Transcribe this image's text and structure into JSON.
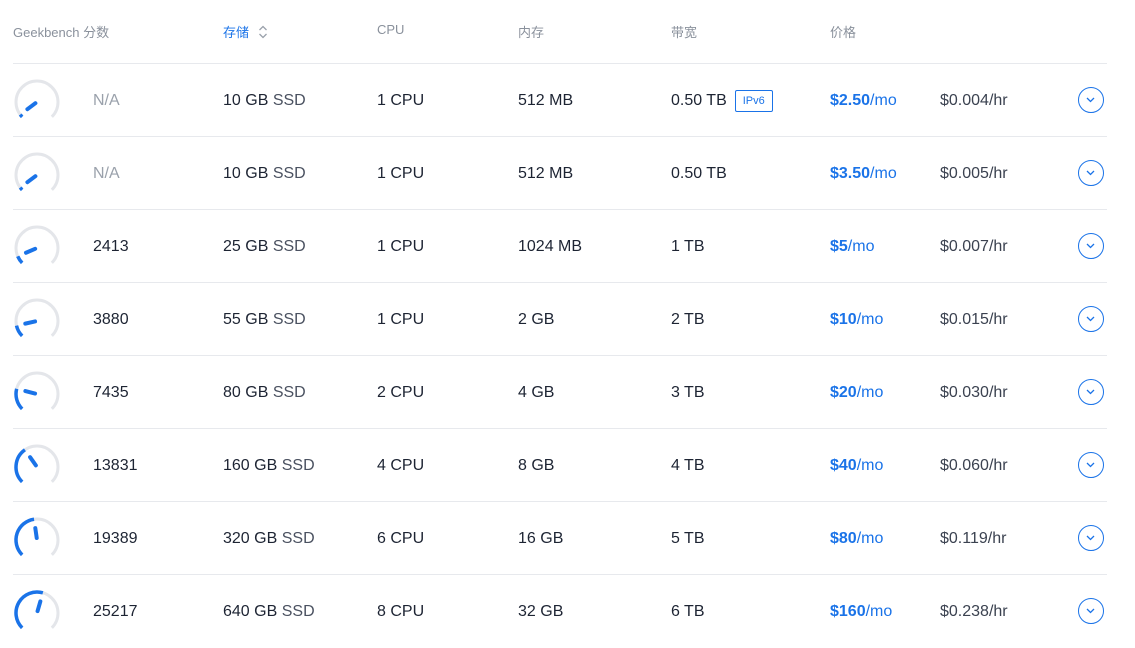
{
  "header": {
    "geekbench": "Geekbench 分数",
    "storage": "存储",
    "cpu": "CPU",
    "memory": "内存",
    "bandwidth": "带宽",
    "price": "价格",
    "sort_icon": "sort-up-down-icon"
  },
  "accent_color": "#1a73e8",
  "plans": [
    {
      "score": "N/A",
      "gauge_level": 0.03,
      "storage_size": "10 GB",
      "storage_type": "SSD",
      "cpu": "1 CPU",
      "memory": "512 MB",
      "bandwidth": "0.50 TB",
      "badge": "IPv6",
      "price_amount": "$2.50",
      "price_unit": "/mo",
      "price_hourly": "$0.004/hr"
    },
    {
      "score": "N/A",
      "gauge_level": 0.03,
      "storage_size": "10 GB",
      "storage_type": "SSD",
      "cpu": "1 CPU",
      "memory": "512 MB",
      "bandwidth": "0.50 TB",
      "badge": "",
      "price_amount": "$3.50",
      "price_unit": "/mo",
      "price_hourly": "$0.005/hr"
    },
    {
      "score": "2413",
      "gauge_level": 0.08,
      "storage_size": "25 GB",
      "storage_type": "SSD",
      "cpu": "1 CPU",
      "memory": "1024 MB",
      "bandwidth": "1 TB",
      "badge": "",
      "price_amount": "$5",
      "price_unit": "/mo",
      "price_hourly": "$0.007/hr"
    },
    {
      "score": "3880",
      "gauge_level": 0.12,
      "storage_size": "55 GB",
      "storage_type": "SSD",
      "cpu": "1 CPU",
      "memory": "2 GB",
      "bandwidth": "2 TB",
      "badge": "",
      "price_amount": "$10",
      "price_unit": "/mo",
      "price_hourly": "$0.015/hr"
    },
    {
      "score": "7435",
      "gauge_level": 0.22,
      "storage_size": "80 GB",
      "storage_type": "SSD",
      "cpu": "2 CPU",
      "memory": "4 GB",
      "bandwidth": "3 TB",
      "badge": "",
      "price_amount": "$20",
      "price_unit": "/mo",
      "price_hourly": "$0.030/hr"
    },
    {
      "score": "13831",
      "gauge_level": 0.37,
      "storage_size": "160 GB",
      "storage_type": "SSD",
      "cpu": "4 CPU",
      "memory": "8 GB",
      "bandwidth": "4 TB",
      "badge": "",
      "price_amount": "$40",
      "price_unit": "/mo",
      "price_hourly": "$0.060/hr"
    },
    {
      "score": "19389",
      "gauge_level": 0.47,
      "storage_size": "320 GB",
      "storage_type": "SSD",
      "cpu": "6 CPU",
      "memory": "16 GB",
      "bandwidth": "5 TB",
      "badge": "",
      "price_amount": "$80",
      "price_unit": "/mo",
      "price_hourly": "$0.119/hr"
    },
    {
      "score": "25217",
      "gauge_level": 0.56,
      "storage_size": "640 GB",
      "storage_type": "SSD",
      "cpu": "8 CPU",
      "memory": "32 GB",
      "bandwidth": "6 TB",
      "badge": "",
      "price_amount": "$160",
      "price_unit": "/mo",
      "price_hourly": "$0.238/hr"
    }
  ]
}
